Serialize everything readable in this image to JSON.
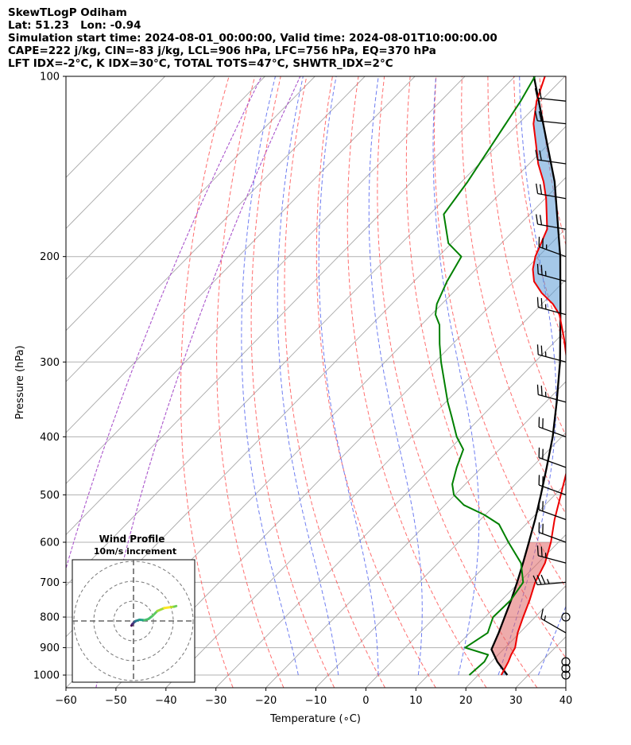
{
  "header": {
    "line1": "SkewTLogP Odiham",
    "line2": "Lat: 51.23   Lon: -0.94",
    "line3": "Simulation start time: 2024-08-01_00:00:00, Valid time: 2024-08-01T10:00:00.00",
    "line4": "CAPE=222 j/kg, CIN=-83 j/kg, LCL=906 hPa, LFC=756 hPa, EQ=370 hPa",
    "line5": "LFT IDX=-2°C, K IDX=30°C, TOTAL TOTS=47°C, SHWTR_IDX=2°C"
  },
  "chart_data": {
    "type": "skewt-logp",
    "title": "SkewTLogP Odiham",
    "xlabel": "Temperature (∘C)",
    "ylabel": "Pressure (hPa)",
    "xlim": [
      -60,
      40
    ],
    "ylim": [
      1050,
      100
    ],
    "x_ticks": [
      -60,
      -50,
      -40,
      -30,
      -20,
      -10,
      0,
      10,
      20,
      30,
      40
    ],
    "x_tick_labels": [
      "−60",
      "−50",
      "−40",
      "−30",
      "−20",
      "−10",
      "0",
      "10",
      "20",
      "30",
      "40"
    ],
    "y_ticks": [
      1000,
      900,
      800,
      700,
      600,
      500,
      400,
      300,
      200,
      100
    ],
    "y_tick_labels": [
      "1000",
      "900",
      "800",
      "700",
      "600",
      "500",
      "400",
      "300",
      "200",
      "100"
    ],
    "temperature": [
      [
        1000,
        24.6
      ],
      [
        950,
        23.4
      ],
      [
        925,
        22.6
      ],
      [
        900,
        22.0
      ],
      [
        850,
        19.6
      ],
      [
        800,
        17.6
      ],
      [
        750,
        15.6
      ],
      [
        700,
        13.2
      ],
      [
        650,
        11.4
      ],
      [
        600,
        8.5
      ],
      [
        550,
        4.8
      ],
      [
        500,
        1.2
      ],
      [
        450,
        -2.8
      ],
      [
        400,
        -7.2
      ],
      [
        350,
        -14.8
      ],
      [
        300,
        -23.6
      ],
      [
        275,
        -28.6
      ],
      [
        250,
        -34.4
      ],
      [
        240,
        -37.8
      ],
      [
        230,
        -42.2
      ],
      [
        220,
        -46.0
      ],
      [
        210,
        -48.6
      ],
      [
        200,
        -50.6
      ],
      [
        180,
        -53.6
      ],
      [
        160,
        -59.8
      ],
      [
        150,
        -63.6
      ],
      [
        140,
        -68.2
      ],
      [
        130,
        -72.4
      ],
      [
        120,
        -77.0
      ],
      [
        110,
        -80.8
      ],
      [
        100,
        -84.0
      ]
    ],
    "dewpoint": [
      [
        1000,
        18.2
      ],
      [
        950,
        18.6
      ],
      [
        925,
        18.0
      ],
      [
        900,
        12.0
      ],
      [
        850,
        13.6
      ],
      [
        800,
        11.6
      ],
      [
        750,
        11.8
      ],
      [
        700,
        10.8
      ],
      [
        650,
        6.6
      ],
      [
        600,
        0.0
      ],
      [
        560,
        -5.4
      ],
      [
        540,
        -10.2
      ],
      [
        520,
        -16.2
      ],
      [
        500,
        -20.2
      ],
      [
        480,
        -22.6
      ],
      [
        450,
        -25.0
      ],
      [
        420,
        -27.2
      ],
      [
        400,
        -31.0
      ],
      [
        370,
        -36.0
      ],
      [
        350,
        -39.6
      ],
      [
        300,
        -48.8
      ],
      [
        280,
        -52.6
      ],
      [
        260,
        -56.4
      ],
      [
        250,
        -59.2
      ],
      [
        240,
        -61.0
      ],
      [
        220,
        -63.4
      ],
      [
        200,
        -65.4
      ],
      [
        190,
        -70.6
      ],
      [
        170,
        -77.2
      ],
      [
        150,
        -78.8
      ],
      [
        130,
        -81.2
      ],
      [
        110,
        -84.0
      ],
      [
        100,
        -86.0
      ]
    ],
    "parcel_profile": [
      [
        1000,
        25.8
      ],
      [
        950,
        21.2
      ],
      [
        906,
        17.6
      ],
      [
        850,
        15.8
      ],
      [
        800,
        13.9
      ],
      [
        750,
        11.9
      ],
      [
        700,
        9.6
      ],
      [
        650,
        7.0
      ],
      [
        600,
        4.1
      ],
      [
        550,
        0.9
      ],
      [
        500,
        -2.8
      ],
      [
        450,
        -7.0
      ],
      [
        400,
        -11.8
      ],
      [
        350,
        -17.8
      ],
      [
        300,
        -25.0
      ],
      [
        250,
        -34.2
      ],
      [
        200,
        -45.6
      ],
      [
        150,
        -61.4
      ],
      [
        100,
        -86.2
      ]
    ],
    "wind_barbs": [
      {
        "p": 1000,
        "speed_kt": 0,
        "dir_deg": 0
      },
      {
        "p": 975,
        "speed_kt": 0,
        "dir_deg": 0
      },
      {
        "p": 950,
        "speed_kt": 0,
        "dir_deg": 0
      },
      {
        "p": 850,
        "speed_kt": 15,
        "dir_deg": 300
      },
      {
        "p": 800,
        "speed_kt": 0,
        "dir_deg": 0
      },
      {
        "p": 700,
        "speed_kt": 35,
        "dir_deg": 265
      },
      {
        "p": 650,
        "speed_kt": 25,
        "dir_deg": 285
      },
      {
        "p": 600,
        "speed_kt": 20,
        "dir_deg": 290
      },
      {
        "p": 550,
        "speed_kt": 20,
        "dir_deg": 290
      },
      {
        "p": 500,
        "speed_kt": 20,
        "dir_deg": 290
      },
      {
        "p": 450,
        "speed_kt": 20,
        "dir_deg": 290
      },
      {
        "p": 400,
        "speed_kt": 20,
        "dir_deg": 290
      },
      {
        "p": 350,
        "speed_kt": 25,
        "dir_deg": 285
      },
      {
        "p": 300,
        "speed_kt": 25,
        "dir_deg": 285
      },
      {
        "p": 250,
        "speed_kt": 25,
        "dir_deg": 285
      },
      {
        "p": 220,
        "speed_kt": 25,
        "dir_deg": 285
      },
      {
        "p": 200,
        "speed_kt": 25,
        "dir_deg": 290
      },
      {
        "p": 180,
        "speed_kt": 20,
        "dir_deg": 280
      },
      {
        "p": 160,
        "speed_kt": 20,
        "dir_deg": 280
      },
      {
        "p": 140,
        "speed_kt": 20,
        "dir_deg": 278
      },
      {
        "p": 120,
        "speed_kt": 20,
        "dir_deg": 276
      },
      {
        "p": 110,
        "speed_kt": 20,
        "dir_deg": 276
      }
    ],
    "hodograph": {
      "title": "Wind Profile",
      "subtitle": "10m/s increment",
      "ring_step_ms": 10,
      "u": [
        -1.0,
        -0.5,
        0.5,
        1.2,
        3.0,
        5.5,
        7.5,
        9.5,
        12.0,
        15.5,
        19.0,
        20.5,
        21.5
      ],
      "v": [
        -2.3,
        -1.5,
        -0.5,
        0.0,
        0.6,
        0.4,
        1.0,
        2.5,
        5.0,
        6.5,
        7.0,
        7.2,
        7.5
      ]
    }
  }
}
